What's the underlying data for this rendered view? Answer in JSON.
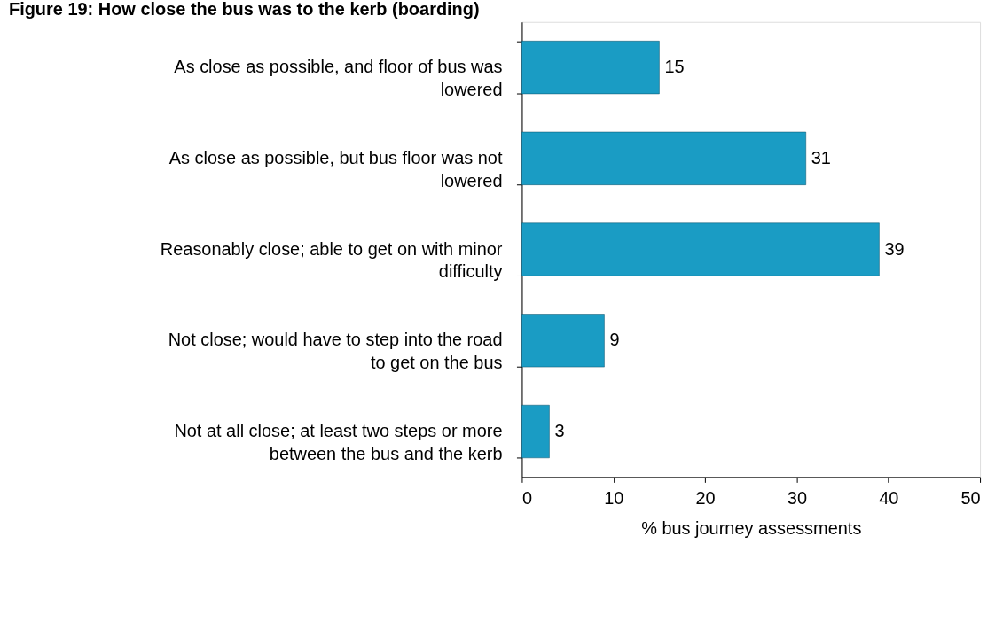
{
  "chart_data": {
    "type": "bar",
    "orientation": "horizontal",
    "title": "Figure 19: How close the bus was to the kerb (boarding)",
    "categories": [
      "As close as possible, and floor of bus was lowered",
      "As close as possible, but bus floor was not lowered",
      "Reasonably close; able to get on with minor difficulty",
      "Not close; would have to step into the road to get on the bus",
      "Not at all close; at least two steps or more between the bus and the kerb"
    ],
    "values": [
      15,
      31,
      39,
      9,
      3
    ],
    "color": "#1a9cc4",
    "xlim": [
      0,
      50
    ],
    "xticks": [
      0,
      10,
      20,
      30,
      40,
      50
    ],
    "xlabel": "% bus journey assessments",
    "data_labels": true,
    "grid": false
  }
}
